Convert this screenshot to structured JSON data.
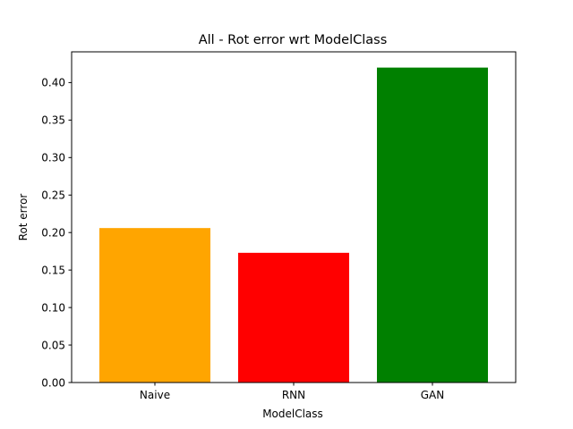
{
  "chart_data": {
    "type": "bar",
    "title": "All - Rot error wrt ModelClass",
    "xlabel": "ModelClass",
    "ylabel": "Rot error",
    "categories": [
      "Naive",
      "RNN",
      "GAN"
    ],
    "values": [
      0.206,
      0.173,
      0.42
    ],
    "colors": [
      "#ffa500",
      "#ff0000",
      "#008000"
    ],
    "ylim": [
      0,
      0.441
    ],
    "yticks": [
      0.0,
      0.05,
      0.1,
      0.15,
      0.2,
      0.25,
      0.3,
      0.35,
      0.4
    ],
    "ytick_labels": [
      "0.00",
      "0.05",
      "0.10",
      "0.15",
      "0.20",
      "0.25",
      "0.30",
      "0.35",
      "0.40"
    ],
    "grid": false,
    "legend": "none"
  }
}
